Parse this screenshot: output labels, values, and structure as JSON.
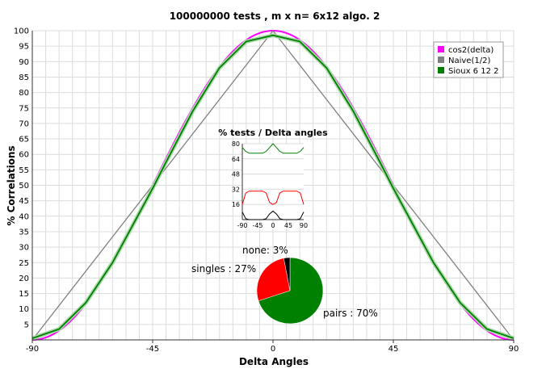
{
  "chart_data": [
    {
      "type": "line",
      "title": "100000000 tests , m x n= 6x12 algo. 2",
      "xlabel": "Delta Angles",
      "ylabel": "% Correlations",
      "xlim": [
        -90,
        90
      ],
      "ylim": [
        0,
        100
      ],
      "x_ticks": [
        "-90",
        "-45",
        "0",
        "45",
        "90"
      ],
      "y_ticks": [
        "5",
        "10",
        "15",
        "20",
        "25",
        "30",
        "35",
        "40",
        "45",
        "50",
        "55",
        "60",
        "65",
        "70",
        "75",
        "80",
        "85",
        "90",
        "95",
        "100"
      ],
      "grid": true,
      "legend_position": "top-right",
      "series": [
        {
          "name": "cos2(delta)",
          "color": "#ff00ff",
          "function": "100*cos^2(x)"
        },
        {
          "name": "Naive(1/2)",
          "color": "#808080",
          "function": "linear triangle 0 at -90, 100 at 0, 0 at 90"
        },
        {
          "name": "Sioux 6 12 2",
          "color": "#008000",
          "x": [
            -90,
            -80,
            -70,
            -60,
            -50,
            -45,
            -40,
            -30,
            -20,
            -10,
            0,
            10,
            20,
            30,
            40,
            45,
            50,
            60,
            70,
            80,
            90
          ],
          "y": [
            0.5,
            3.5,
            12,
            25,
            41,
            49,
            57.5,
            74,
            88,
            96.5,
            98.5,
            96.5,
            88,
            74,
            57.5,
            49,
            41,
            25,
            12,
            3.5,
            0.5
          ]
        }
      ]
    },
    {
      "type": "line",
      "title": "% tests / Delta angles",
      "xlim": [
        -90,
        90
      ],
      "ylim": [
        0,
        80
      ],
      "x_ticks": [
        "-90",
        "-45",
        "0",
        "45",
        "90"
      ],
      "y_ticks": [
        "16",
        "32",
        "48",
        "64",
        "80"
      ],
      "series": [
        {
          "color": "#008000",
          "x": [
            -90,
            -80,
            -70,
            -60,
            -45,
            -30,
            -20,
            -10,
            0,
            10,
            20,
            30,
            45,
            60,
            70,
            80,
            90
          ],
          "y": [
            76,
            72,
            70,
            70,
            70,
            70,
            72,
            76,
            80,
            76,
            72,
            70,
            70,
            70,
            70,
            72,
            76
          ]
        },
        {
          "color": "#ff0000",
          "x": [
            -90,
            -80,
            -70,
            -60,
            -45,
            -30,
            -20,
            -10,
            0,
            10,
            20,
            30,
            45,
            60,
            70,
            80,
            90
          ],
          "y": [
            16,
            28,
            30,
            30,
            30,
            30,
            28,
            18,
            16,
            18,
            28,
            30,
            30,
            30,
            30,
            28,
            16
          ]
        },
        {
          "color": "#000000",
          "x": [
            -90,
            -80,
            -70,
            -60,
            -45,
            -30,
            -20,
            -10,
            0,
            10,
            20,
            30,
            45,
            60,
            70,
            80,
            90
          ],
          "y": [
            8,
            1,
            0,
            0,
            0,
            0,
            1,
            6,
            9,
            6,
            1,
            0,
            0,
            0,
            0,
            1,
            8
          ]
        }
      ]
    },
    {
      "type": "pie",
      "slices": [
        {
          "label": "pairs : 70%",
          "value": 70,
          "color": "#008000"
        },
        {
          "label": "singles : 27%",
          "value": 27,
          "color": "#ff0000"
        },
        {
          "label": "none: 3%",
          "value": 3,
          "color": "#000000"
        }
      ]
    }
  ]
}
